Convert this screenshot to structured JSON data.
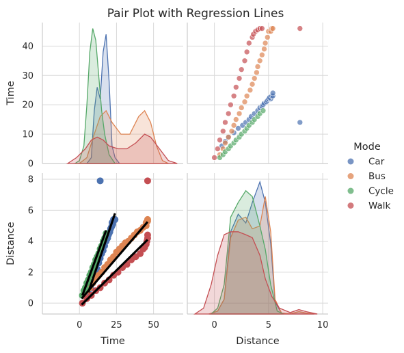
{
  "chart_data": {
    "type": "scatter",
    "title": "Pair Plot with Regression Lines",
    "variables": [
      "Time",
      "Distance"
    ],
    "axes": {
      "Time": {
        "lim": [
          -25,
          70
        ],
        "ticks": [
          0,
          25,
          50
        ],
        "row_lim": [
          0,
          48
        ],
        "row_ticks": [
          0,
          10,
          20,
          30,
          40
        ]
      },
      "Distance": {
        "lim": [
          -2.5,
          10.5
        ],
        "ticks": [
          0,
          5,
          10
        ],
        "row_lim": [
          -0.7,
          8.4
        ],
        "row_ticks": [
          0,
          2,
          4,
          6,
          8
        ]
      }
    },
    "grid": true,
    "legend": {
      "title": "Mode",
      "placement": "right",
      "entries": [
        {
          "name": "Car",
          "color": "#4c72b0"
        },
        {
          "name": "Bus",
          "color": "#dd8452"
        },
        {
          "name": "Cycle",
          "color": "#55a868"
        },
        {
          "name": "Walk",
          "color": "#c44e52"
        }
      ]
    },
    "series": [
      {
        "name": "Car",
        "color": "#4c72b0",
        "points": [
          [
            6.0,
            0.7
          ],
          [
            7.5,
            1.0
          ],
          [
            9.0,
            1.3
          ],
          [
            10.5,
            1.8
          ],
          [
            12.0,
            2.2
          ],
          [
            13.0,
            2.6
          ],
          [
            14.0,
            2.9
          ],
          [
            15.0,
            3.2
          ],
          [
            16.0,
            3.4
          ],
          [
            17.0,
            3.7
          ],
          [
            18.0,
            4.0
          ],
          [
            19.0,
            4.2
          ],
          [
            19.5,
            4.4
          ],
          [
            20.0,
            4.5
          ],
          [
            20.5,
            4.6
          ],
          [
            21.0,
            4.8
          ],
          [
            21.5,
            4.9
          ],
          [
            22.0,
            5.0
          ],
          [
            22.0,
            5.2
          ],
          [
            22.5,
            5.1
          ],
          [
            23.0,
            5.3
          ],
          [
            23.0,
            5.4
          ],
          [
            24.0,
            5.4
          ],
          [
            14.0,
            7.9
          ]
        ],
        "regression": {
          "x0": 6.0,
          "y0": 0.7,
          "x1": 24.0,
          "y1": 5.8
        }
      },
      {
        "name": "Bus",
        "color": "#dd8452",
        "points": [
          [
            3.0,
            0.5
          ],
          [
            5.0,
            0.8
          ],
          [
            7.0,
            1.0
          ],
          [
            9.0,
            1.3
          ],
          [
            11.0,
            1.6
          ],
          [
            13.0,
            1.8
          ],
          [
            15.0,
            2.0
          ],
          [
            17.0,
            2.3
          ],
          [
            19.0,
            2.5
          ],
          [
            21.0,
            2.8
          ],
          [
            23.0,
            3.0
          ],
          [
            25.0,
            3.3
          ],
          [
            27.0,
            3.5
          ],
          [
            29.0,
            3.7
          ],
          [
            31.0,
            3.9
          ],
          [
            33.0,
            4.0
          ],
          [
            35.0,
            4.2
          ],
          [
            37.0,
            4.4
          ],
          [
            39.0,
            4.6
          ],
          [
            41.0,
            4.7
          ],
          [
            43.0,
            4.9
          ],
          [
            45.0,
            5.0
          ],
          [
            45.0,
            5.2
          ],
          [
            46.0,
            5.3
          ],
          [
            46.0,
            5.4
          ]
        ],
        "regression": {
          "x0": 1.5,
          "y0": 0.3,
          "x1": 46.0,
          "y1": 5.25
        }
      },
      {
        "name": "Cycle",
        "color": "#55a868",
        "points": [
          [
            2.0,
            0.5
          ],
          [
            3.0,
            0.8
          ],
          [
            4.0,
            1.0
          ],
          [
            5.0,
            1.3
          ],
          [
            6.0,
            1.5
          ],
          [
            7.0,
            1.8
          ],
          [
            8.0,
            2.0
          ],
          [
            9.0,
            2.3
          ],
          [
            10.0,
            2.5
          ],
          [
            11.0,
            2.8
          ],
          [
            12.0,
            3.0
          ],
          [
            13.0,
            3.2
          ],
          [
            14.0,
            3.5
          ],
          [
            15.0,
            3.7
          ],
          [
            16.0,
            4.0
          ],
          [
            17.0,
            4.2
          ],
          [
            18.0,
            4.5
          ]
        ],
        "regression": {
          "x0": 2.0,
          "y0": 0.5,
          "x1": 18.0,
          "y1": 4.7
        }
      },
      {
        "name": "Walk",
        "color": "#c44e52",
        "points": [
          [
            2.0,
            0.0
          ],
          [
            5.0,
            0.3
          ],
          [
            8.0,
            0.5
          ],
          [
            11.0,
            0.8
          ],
          [
            14.0,
            1.0
          ],
          [
            17.0,
            1.3
          ],
          [
            20.0,
            1.5
          ],
          [
            23.0,
            1.8
          ],
          [
            26.0,
            2.0
          ],
          [
            29.0,
            2.3
          ],
          [
            32.0,
            2.5
          ],
          [
            35.0,
            2.8
          ],
          [
            38.0,
            3.0
          ],
          [
            41.0,
            3.2
          ],
          [
            43.0,
            3.5
          ],
          [
            44.0,
            3.6
          ],
          [
            45.0,
            3.8
          ],
          [
            45.5,
            4.0
          ],
          [
            46.0,
            4.2
          ],
          [
            46.0,
            4.4
          ],
          [
            46.0,
            7.9
          ]
        ],
        "regression": {
          "x0": 1.5,
          "y0": -0.1,
          "x1": 46.0,
          "y1": 4.1
        }
      }
    ],
    "kde": {
      "Time": {
        "Car": [
          [
            5,
            0
          ],
          [
            8,
            2
          ],
          [
            10,
            18
          ],
          [
            12,
            26
          ],
          [
            14,
            22
          ],
          [
            16,
            38
          ],
          [
            18,
            44
          ],
          [
            20,
            28
          ],
          [
            22,
            6
          ],
          [
            24,
            2
          ],
          [
            27,
            0
          ]
        ],
        "Bus": [
          [
            0,
            0
          ],
          [
            5,
            2
          ],
          [
            10,
            10
          ],
          [
            14,
            16
          ],
          [
            18,
            18
          ],
          [
            22,
            14
          ],
          [
            28,
            10
          ],
          [
            34,
            10
          ],
          [
            40,
            16
          ],
          [
            44,
            18
          ],
          [
            48,
            14
          ],
          [
            52,
            6
          ],
          [
            56,
            1
          ],
          [
            60,
            0
          ]
        ],
        "Cycle": [
          [
            -3,
            0
          ],
          [
            0,
            1
          ],
          [
            3,
            6
          ],
          [
            5,
            20
          ],
          [
            7,
            38
          ],
          [
            9,
            46
          ],
          [
            11,
            42
          ],
          [
            13,
            30
          ],
          [
            15,
            18
          ],
          [
            17,
            10
          ],
          [
            20,
            3
          ],
          [
            24,
            0
          ]
        ],
        "Walk": [
          [
            -8,
            0
          ],
          [
            -2,
            2
          ],
          [
            4,
            5
          ],
          [
            8,
            8
          ],
          [
            12,
            9
          ],
          [
            16,
            8
          ],
          [
            20,
            6
          ],
          [
            26,
            5
          ],
          [
            32,
            5
          ],
          [
            38,
            7
          ],
          [
            44,
            10
          ],
          [
            48,
            9
          ],
          [
            54,
            5
          ],
          [
            60,
            1
          ],
          [
            66,
            0
          ]
        ]
      },
      "Distance": {
        "Car": [
          [
            -0.5,
            0
          ],
          [
            0.3,
            1
          ],
          [
            0.9,
            5
          ],
          [
            1.5,
            28
          ],
          [
            2.2,
            34
          ],
          [
            2.9,
            31
          ],
          [
            3.5,
            38
          ],
          [
            4.2,
            45
          ],
          [
            4.7,
            38
          ],
          [
            5.2,
            24
          ],
          [
            5.6,
            4
          ],
          [
            6.2,
            0.3
          ],
          [
            7.0,
            0.1
          ],
          [
            7.8,
            0.8
          ],
          [
            8.5,
            0.3
          ],
          [
            9.2,
            0
          ]
        ],
        "Bus": [
          [
            -0.5,
            0
          ],
          [
            0.3,
            1
          ],
          [
            0.9,
            5
          ],
          [
            1.5,
            26
          ],
          [
            2.2,
            32
          ],
          [
            2.9,
            33
          ],
          [
            3.5,
            29
          ],
          [
            4.2,
            30
          ],
          [
            4.7,
            40
          ],
          [
            5.2,
            28
          ],
          [
            5.6,
            5
          ],
          [
            6.2,
            0.3
          ],
          [
            7.0,
            0.1
          ],
          [
            7.8,
            0.8
          ],
          [
            8.5,
            0.3
          ],
          [
            9.2,
            0
          ]
        ],
        "Cycle": [
          [
            -0.3,
            0
          ],
          [
            0.3,
            2
          ],
          [
            0.9,
            10
          ],
          [
            1.5,
            33
          ],
          [
            2.2,
            38
          ],
          [
            2.9,
            42
          ],
          [
            3.5,
            40
          ],
          [
            4.2,
            30
          ],
          [
            4.7,
            22
          ],
          [
            5.2,
            10
          ],
          [
            5.8,
            1
          ],
          [
            6.4,
            0
          ]
        ],
        "Walk": [
          [
            -1.8,
            0
          ],
          [
            -1.0,
            2
          ],
          [
            -0.3,
            10
          ],
          [
            0.3,
            20
          ],
          [
            0.9,
            27
          ],
          [
            1.5,
            28
          ],
          [
            2.2,
            28
          ],
          [
            2.9,
            27
          ],
          [
            3.5,
            26
          ],
          [
            4.2,
            20
          ],
          [
            4.7,
            12
          ],
          [
            5.3,
            6
          ],
          [
            6.0,
            2
          ],
          [
            7.0,
            0.5
          ],
          [
            7.8,
            1.5
          ],
          [
            8.5,
            0.8
          ],
          [
            9.5,
            0
          ]
        ]
      }
    }
  }
}
